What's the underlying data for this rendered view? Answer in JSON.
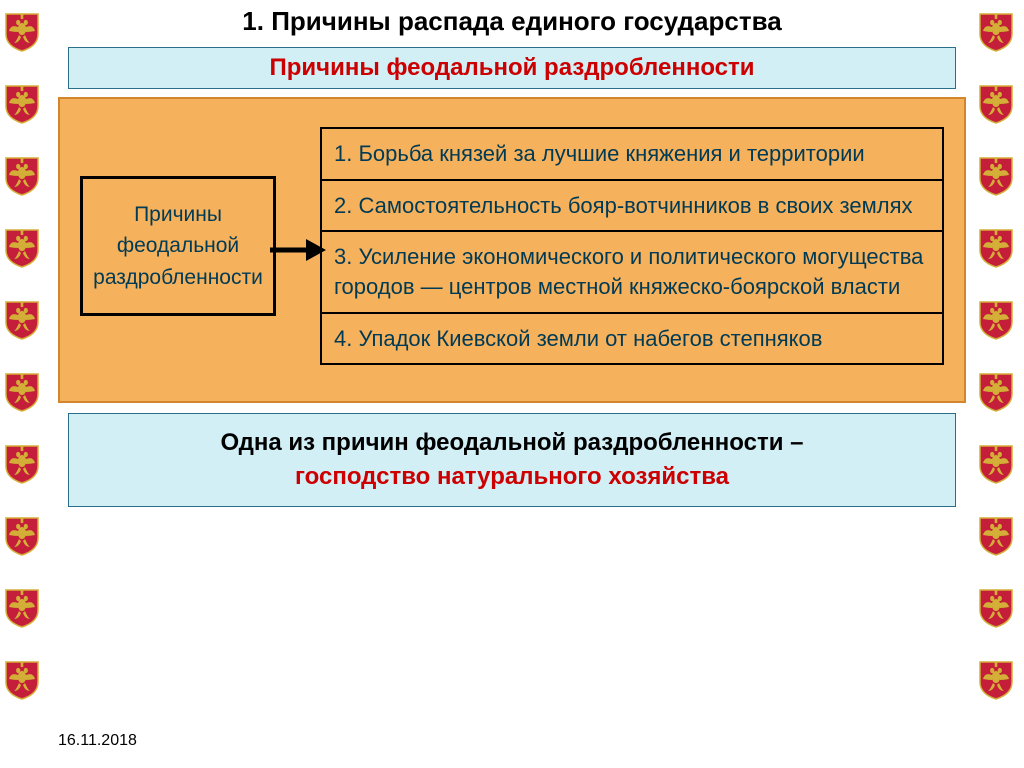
{
  "slide": {
    "title": "1. Причины распада единого государства",
    "title_fontsize": 26,
    "subtitle": "Причины феодальной раздробленности",
    "subtitle_color": "#cc0000",
    "subtitle_bg": "#d2eff6",
    "subtitle_border": "#2a6f8a",
    "subtitle_fontsize": 24
  },
  "diagram": {
    "panel_bg": "#f5b15b",
    "panel_border": "#d2862d",
    "box_label_l1": "Причины",
    "box_label_l2": "феодальной",
    "box_label_l3": "раздробленности",
    "box_fontsize": 21,
    "arrow_color": "#000000",
    "items": [
      "1. Борьба князей за лучшие княжения и территории",
      "2. Самостоятельность бояр-вотчинников в своих землях",
      "3. Усиление экономического и политического могущества городов — центров местной княжеско-боярской власти",
      "4. Упадок Киевской земли от набегов степняков"
    ],
    "item_fontsize": 22
  },
  "footer": {
    "line1": "Одна из причин феодальной раздробленности –",
    "line2": "господство натурального хозяйства",
    "line2_color": "#cc0000",
    "bg": "#d2eff6",
    "border": "#2a6f8a",
    "fontsize": 24
  },
  "date": {
    "text": "16.11.2018",
    "fontsize": 16
  },
  "emblem": {
    "shield_color": "#c41e3a",
    "shield_border": "#d4af37",
    "eagle_color": "#d4af37",
    "count_per_side": 10
  }
}
